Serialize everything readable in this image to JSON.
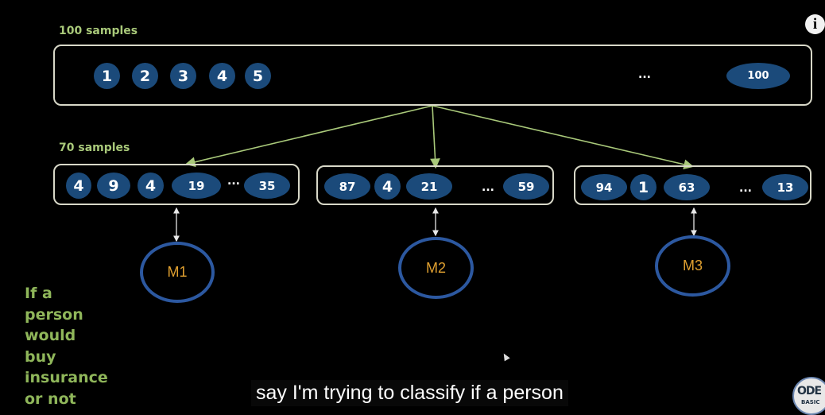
{
  "top": {
    "label": "100 samples",
    "items": [
      "1",
      "2",
      "3",
      "4",
      "5"
    ],
    "ellipsis": "...",
    "last": "100"
  },
  "subset_label": "70 samples",
  "subsets": [
    {
      "items": [
        "4",
        "9",
        "4",
        "19"
      ],
      "ellipsis": "...",
      "last": "35",
      "model": "M1"
    },
    {
      "items": [
        "87",
        "4",
        "21"
      ],
      "ellipsis": "...",
      "last": "59",
      "model": "M2"
    },
    {
      "items": [
        "94",
        "1",
        "63"
      ],
      "ellipsis": "...",
      "last": "13",
      "model": "M3"
    }
  ],
  "side_text": [
    "If a",
    "person",
    "would",
    "buy",
    "insurance",
    "or not"
  ],
  "caption": "say I'm trying to classify if a person",
  "info_glyph": "i",
  "logo": {
    "line1": "ODE",
    "line2": "BASIC"
  },
  "colors": {
    "pill": "#1b4a7a",
    "label": "#a9c97a",
    "model_ring": "#2c58a0",
    "model_text": "#e0a030"
  }
}
